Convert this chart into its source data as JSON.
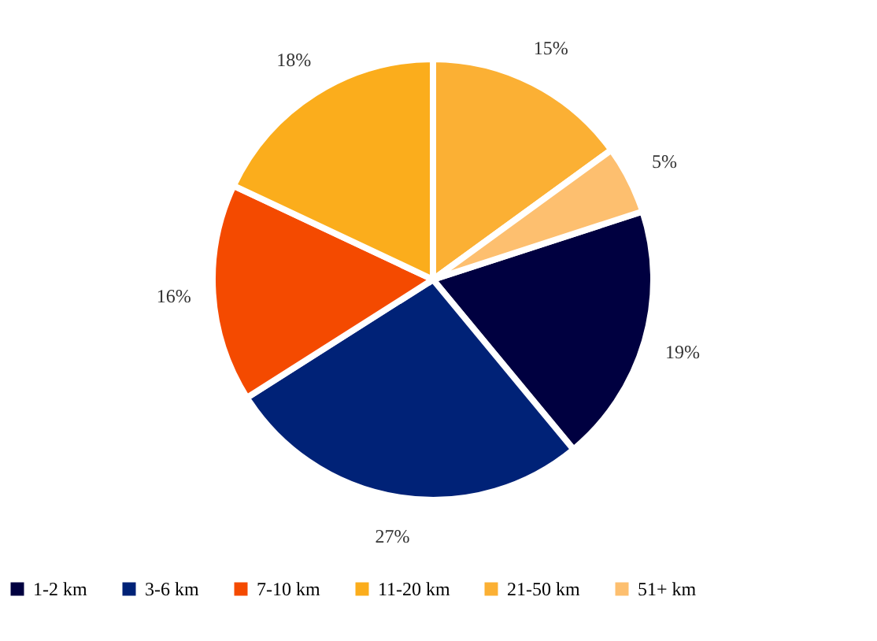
{
  "chart_data": {
    "type": "pie",
    "categories": [
      "1-2 km",
      "3-6 km",
      "7-10 km",
      "11-20 km",
      "21-50 km",
      "51+ km"
    ],
    "values": [
      19,
      27,
      16,
      18,
      15,
      5
    ],
    "colors": [
      "#000040",
      "#002277",
      "#f44a00",
      "#fbad1c",
      "#fbb034",
      "#fdbf6f"
    ],
    "value_labels": [
      "19%",
      "27%",
      "16%",
      "18%",
      "15%",
      "5%"
    ],
    "legend": "bottom"
  }
}
